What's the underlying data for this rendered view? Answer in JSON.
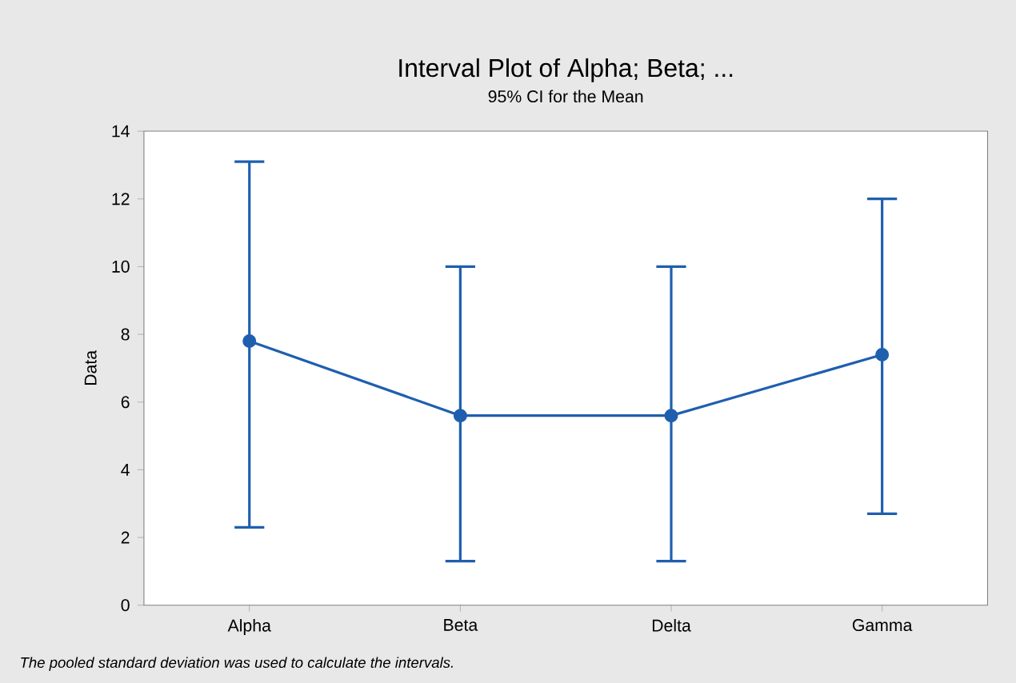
{
  "chart_data": {
    "type": "line",
    "title": "Interval Plot of Alpha; Beta; ...",
    "subtitle": "95% CI for the Mean",
    "ylabel": "Data",
    "categories": [
      "Alpha",
      "Beta",
      "Delta",
      "Gamma"
    ],
    "values": [
      7.8,
      5.6,
      5.6,
      7.4
    ],
    "errors": [
      [
        2.3,
        13.1
      ],
      [
        1.3,
        10.0
      ],
      [
        1.3,
        10.0
      ],
      [
        2.7,
        12.0
      ]
    ],
    "color": "#1f5fae",
    "marker": "circle",
    "line_style": "solid",
    "ylim": [
      0,
      14
    ],
    "yticks": [
      0,
      2,
      4,
      6,
      8,
      10,
      12,
      14
    ],
    "grid": false,
    "annotations": [
      "The pooled standard deviation was used to calculate the intervals."
    ]
  }
}
